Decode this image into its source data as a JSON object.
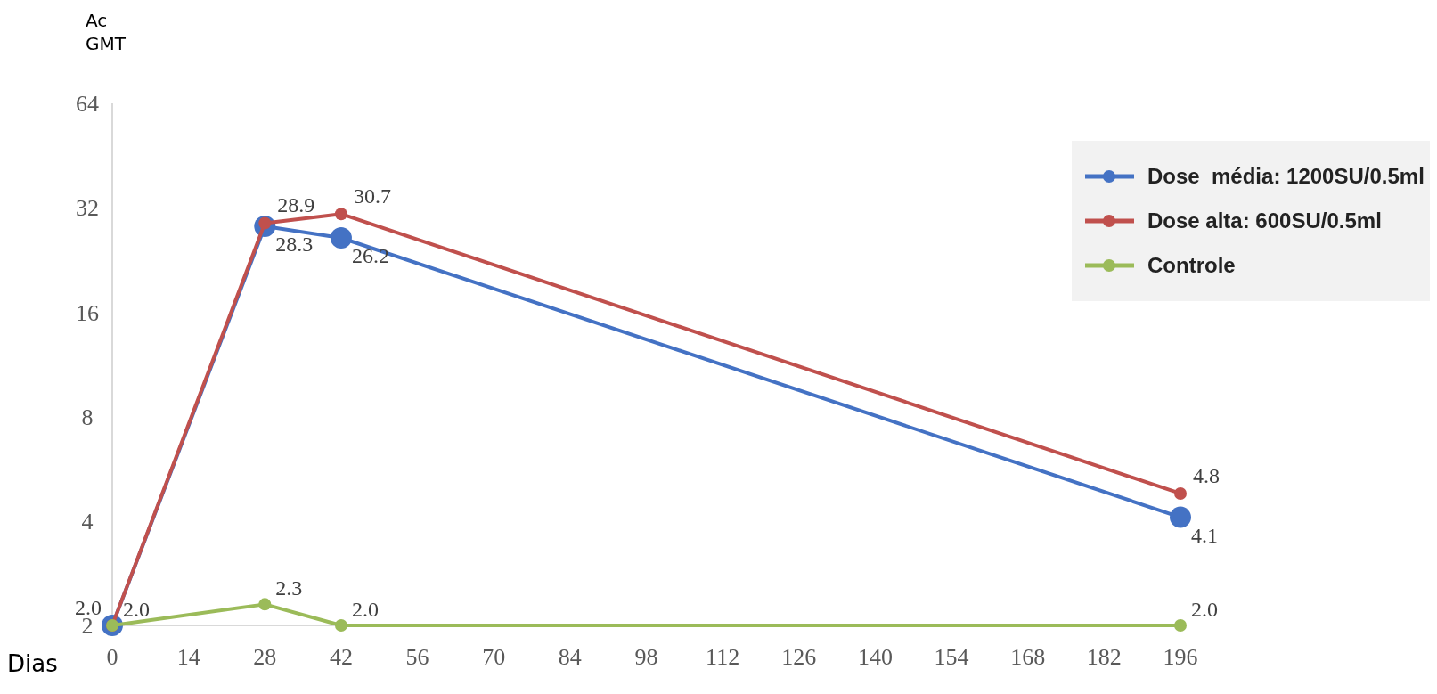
{
  "chart_data": {
    "type": "line",
    "xlabel": "Dias",
    "ylabel": "Ac GMT",
    "log": "y",
    "x": [
      0,
      28,
      42,
      196
    ],
    "xlim": [
      0,
      196
    ],
    "xticks": [
      0,
      14,
      28,
      42,
      56,
      70,
      84,
      98,
      112,
      126,
      140,
      154,
      168,
      182,
      196
    ],
    "ylim": [
      2,
      64
    ],
    "yticks": [
      2,
      4,
      8,
      16,
      32,
      64
    ],
    "legend": "top right",
    "marker": "circle",
    "line_style": "solid",
    "series": [
      {
        "name": "Dose  média: 1200SU/0.5ml",
        "color": "#4472c4",
        "values": [
          2.0,
          28.3,
          26.2,
          4.1
        ],
        "value_labels": [
          null,
          "28.3",
          "26.2",
          "4.1"
        ]
      },
      {
        "name": "Dose alta: 600SU/0.5ml",
        "color": "#c0504d",
        "values": [
          2.0,
          28.9,
          30.7,
          4.8
        ],
        "value_labels": [
          "2.0",
          "28.9",
          "30.7",
          "4.8"
        ]
      },
      {
        "name": "Controle",
        "color": "#9bbb59",
        "values": [
          2.0,
          2.3,
          2.0,
          2.0
        ],
        "value_labels": [
          "2.0",
          "2.3",
          "2.0",
          "2.0"
        ]
      }
    ]
  }
}
